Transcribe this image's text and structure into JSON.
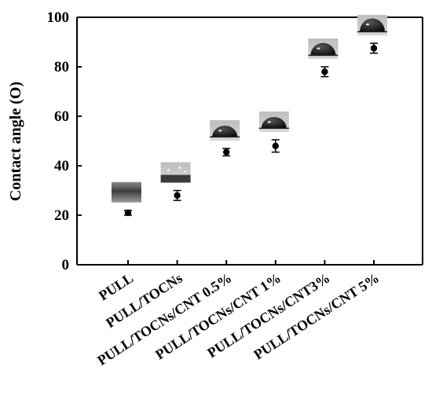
{
  "chart_data": {
    "type": "scatter",
    "title": "",
    "xlabel": "",
    "ylabel": "Contact angle (O)",
    "ylim": [
      0,
      100
    ],
    "yticks": [
      0,
      20,
      40,
      60,
      80,
      100
    ],
    "grid": false,
    "legend": "none",
    "categories": [
      "PULL",
      "PULL/TOCNs",
      "PULL/TOCNs/CNT 0.5%",
      "PULL/TOCNs/CNT 1%",
      "PULL/TOCNs/CNT3%",
      "PULL/TOCNs/CNT 5%"
    ],
    "series": [
      {
        "values": [
          21,
          28,
          45.5,
          48,
          78,
          87.5
        ],
        "errors": [
          1,
          2,
          1.5,
          2.5,
          2,
          2
        ]
      }
    ],
    "annotations": [
      "droplet-photo",
      "droplet-photo",
      "droplet-photo",
      "droplet-photo",
      "droplet-photo",
      "droplet-photo"
    ],
    "colors": {
      "marker": "#000000",
      "axis": "#000000"
    }
  }
}
